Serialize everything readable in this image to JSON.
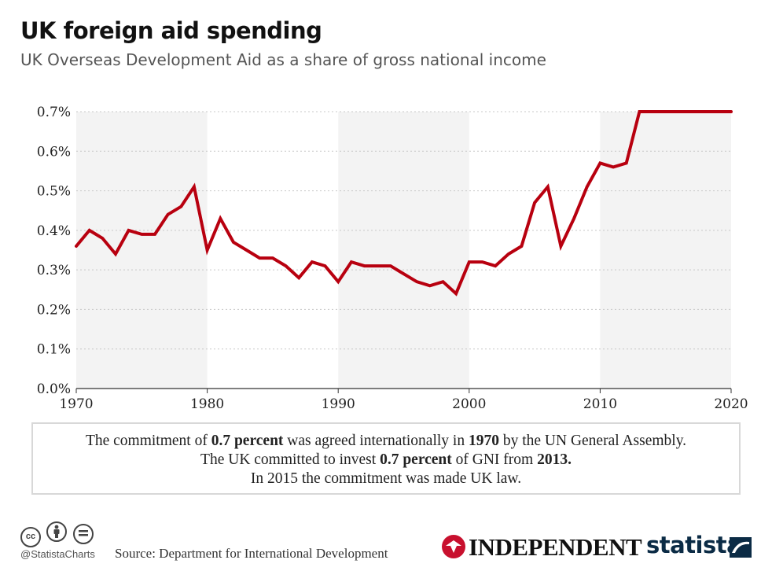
{
  "header": {
    "title": "UK foreign aid spending",
    "subtitle": "UK Overseas Development Aid as a share of gross national income"
  },
  "chart_data": {
    "type": "line",
    "title": "UK foreign aid spending",
    "subtitle": "UK Overseas Development Aid as a share of gross national income",
    "xlabel": "",
    "ylabel": "",
    "xlim": [
      1970,
      2020
    ],
    "ylim": [
      0,
      0.7
    ],
    "x_ticks": [
      "1970",
      "1980",
      "1990",
      "2000",
      "2010",
      "2020"
    ],
    "y_ticks": [
      "0.0%",
      "0.1%",
      "0.2%",
      "0.3%",
      "0.4%",
      "0.5%",
      "0.6%",
      "0.7%"
    ],
    "grid": "horizontal dotted",
    "line_color": "#b8000f",
    "band_color": "#f3f3f3",
    "series": [
      {
        "x": [
          1970,
          1971,
          1972,
          1973,
          1974,
          1975,
          1976,
          1977,
          1978,
          1979,
          1980,
          1981,
          1982,
          1983,
          1984,
          1985,
          1986,
          1987,
          1988,
          1989,
          1990,
          1991,
          1992,
          1993,
          1994,
          1995,
          1996,
          1997,
          1998,
          1999,
          2000,
          2001,
          2002,
          2003,
          2004,
          2005,
          2006,
          2007,
          2008,
          2009,
          2010,
          2011,
          2012,
          2013,
          2014,
          2015,
          2016,
          2017,
          2018,
          2019,
          2020
        ],
        "values": [
          0.36,
          0.4,
          0.38,
          0.34,
          0.4,
          0.39,
          0.39,
          0.44,
          0.46,
          0.51,
          0.35,
          0.43,
          0.37,
          0.35,
          0.33,
          0.33,
          0.31,
          0.28,
          0.32,
          0.31,
          0.27,
          0.32,
          0.31,
          0.31,
          0.31,
          0.29,
          0.27,
          0.26,
          0.27,
          0.24,
          0.32,
          0.32,
          0.31,
          0.34,
          0.36,
          0.47,
          0.51,
          0.36,
          0.43,
          0.51,
          0.57,
          0.56,
          0.57,
          0.7,
          0.7,
          0.7,
          0.7,
          0.7,
          0.7,
          0.7,
          0.7
        ]
      }
    ]
  },
  "note": {
    "line1_a": "The commitment of ",
    "line1_b": "0.7 percent",
    "line1_c": " was agreed internationally in ",
    "line1_d": "1970",
    "line1_e": "  by the UN General Assembly.",
    "line2_a": "The UK committed to invest ",
    "line2_b": "0.7 percent",
    "line2_c": " of GNI from ",
    "line2_d": "2013.",
    "line3": "In 2015 the commitment was made UK law."
  },
  "footer": {
    "license_icons": [
      "cc-icon",
      "by-icon",
      "nd-icon"
    ],
    "cc_label": "cc",
    "handle": "@StatistaCharts",
    "source": "Source: Department for International Development",
    "partner_logo": "INDEPENDENT",
    "brand_logo": "statista"
  }
}
